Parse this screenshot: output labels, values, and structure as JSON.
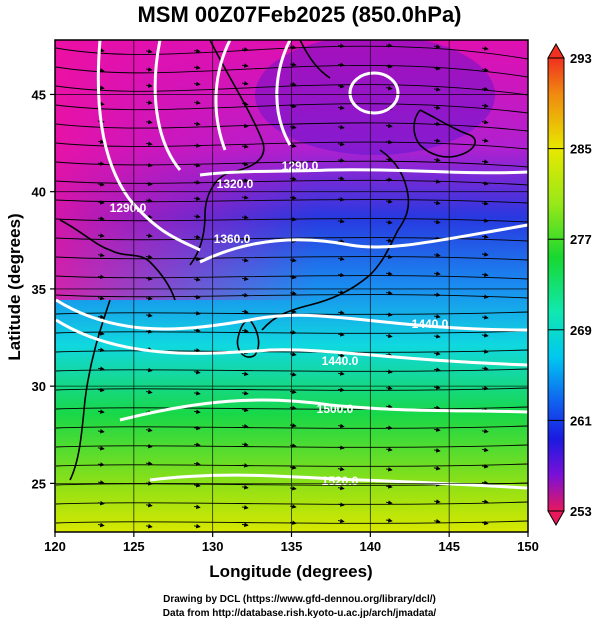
{
  "title": "MSM 00Z07Feb2025 (850.0hPa)",
  "map": {
    "xlabel": "Longitude (degrees)",
    "ylabel": "Latitude  (degrees)",
    "xlim": [
      120,
      150
    ],
    "ylim": [
      22.5,
      47.8
    ],
    "xticks": [
      "120",
      "125",
      "130",
      "135",
      "140",
      "145",
      "150"
    ],
    "yticks": [
      "25",
      "30",
      "35",
      "40",
      "45"
    ]
  },
  "colorbar": {
    "ticks": [
      "293",
      "285",
      "277",
      "269",
      "261",
      "253"
    ],
    "range": [
      253,
      293
    ],
    "colors": [
      "#e8185c",
      "#c000c8",
      "#7a10d8",
      "#1a1ae0",
      "#1060f0",
      "#00c8f0",
      "#10e8b0",
      "#18d830",
      "#9ae818",
      "#e8e800",
      "#f08a10",
      "#f03020"
    ]
  },
  "contours": [
    {
      "label": "1290.0"
    },
    {
      "label": "1320.0"
    },
    {
      "label": "1360.0"
    },
    {
      "label": "1440.0"
    },
    {
      "label": "1440.0"
    },
    {
      "label": "1500.0"
    },
    {
      "label": "1520.0"
    },
    {
      "label": "1290.0"
    }
  ],
  "credits": {
    "line1": "Drawing by DCL (https://www.gfd-dennou.org/library/dcl/)",
    "line2": "Data from http://database.rish.kyoto-u.ac.jp/arch/jmadata/"
  }
}
